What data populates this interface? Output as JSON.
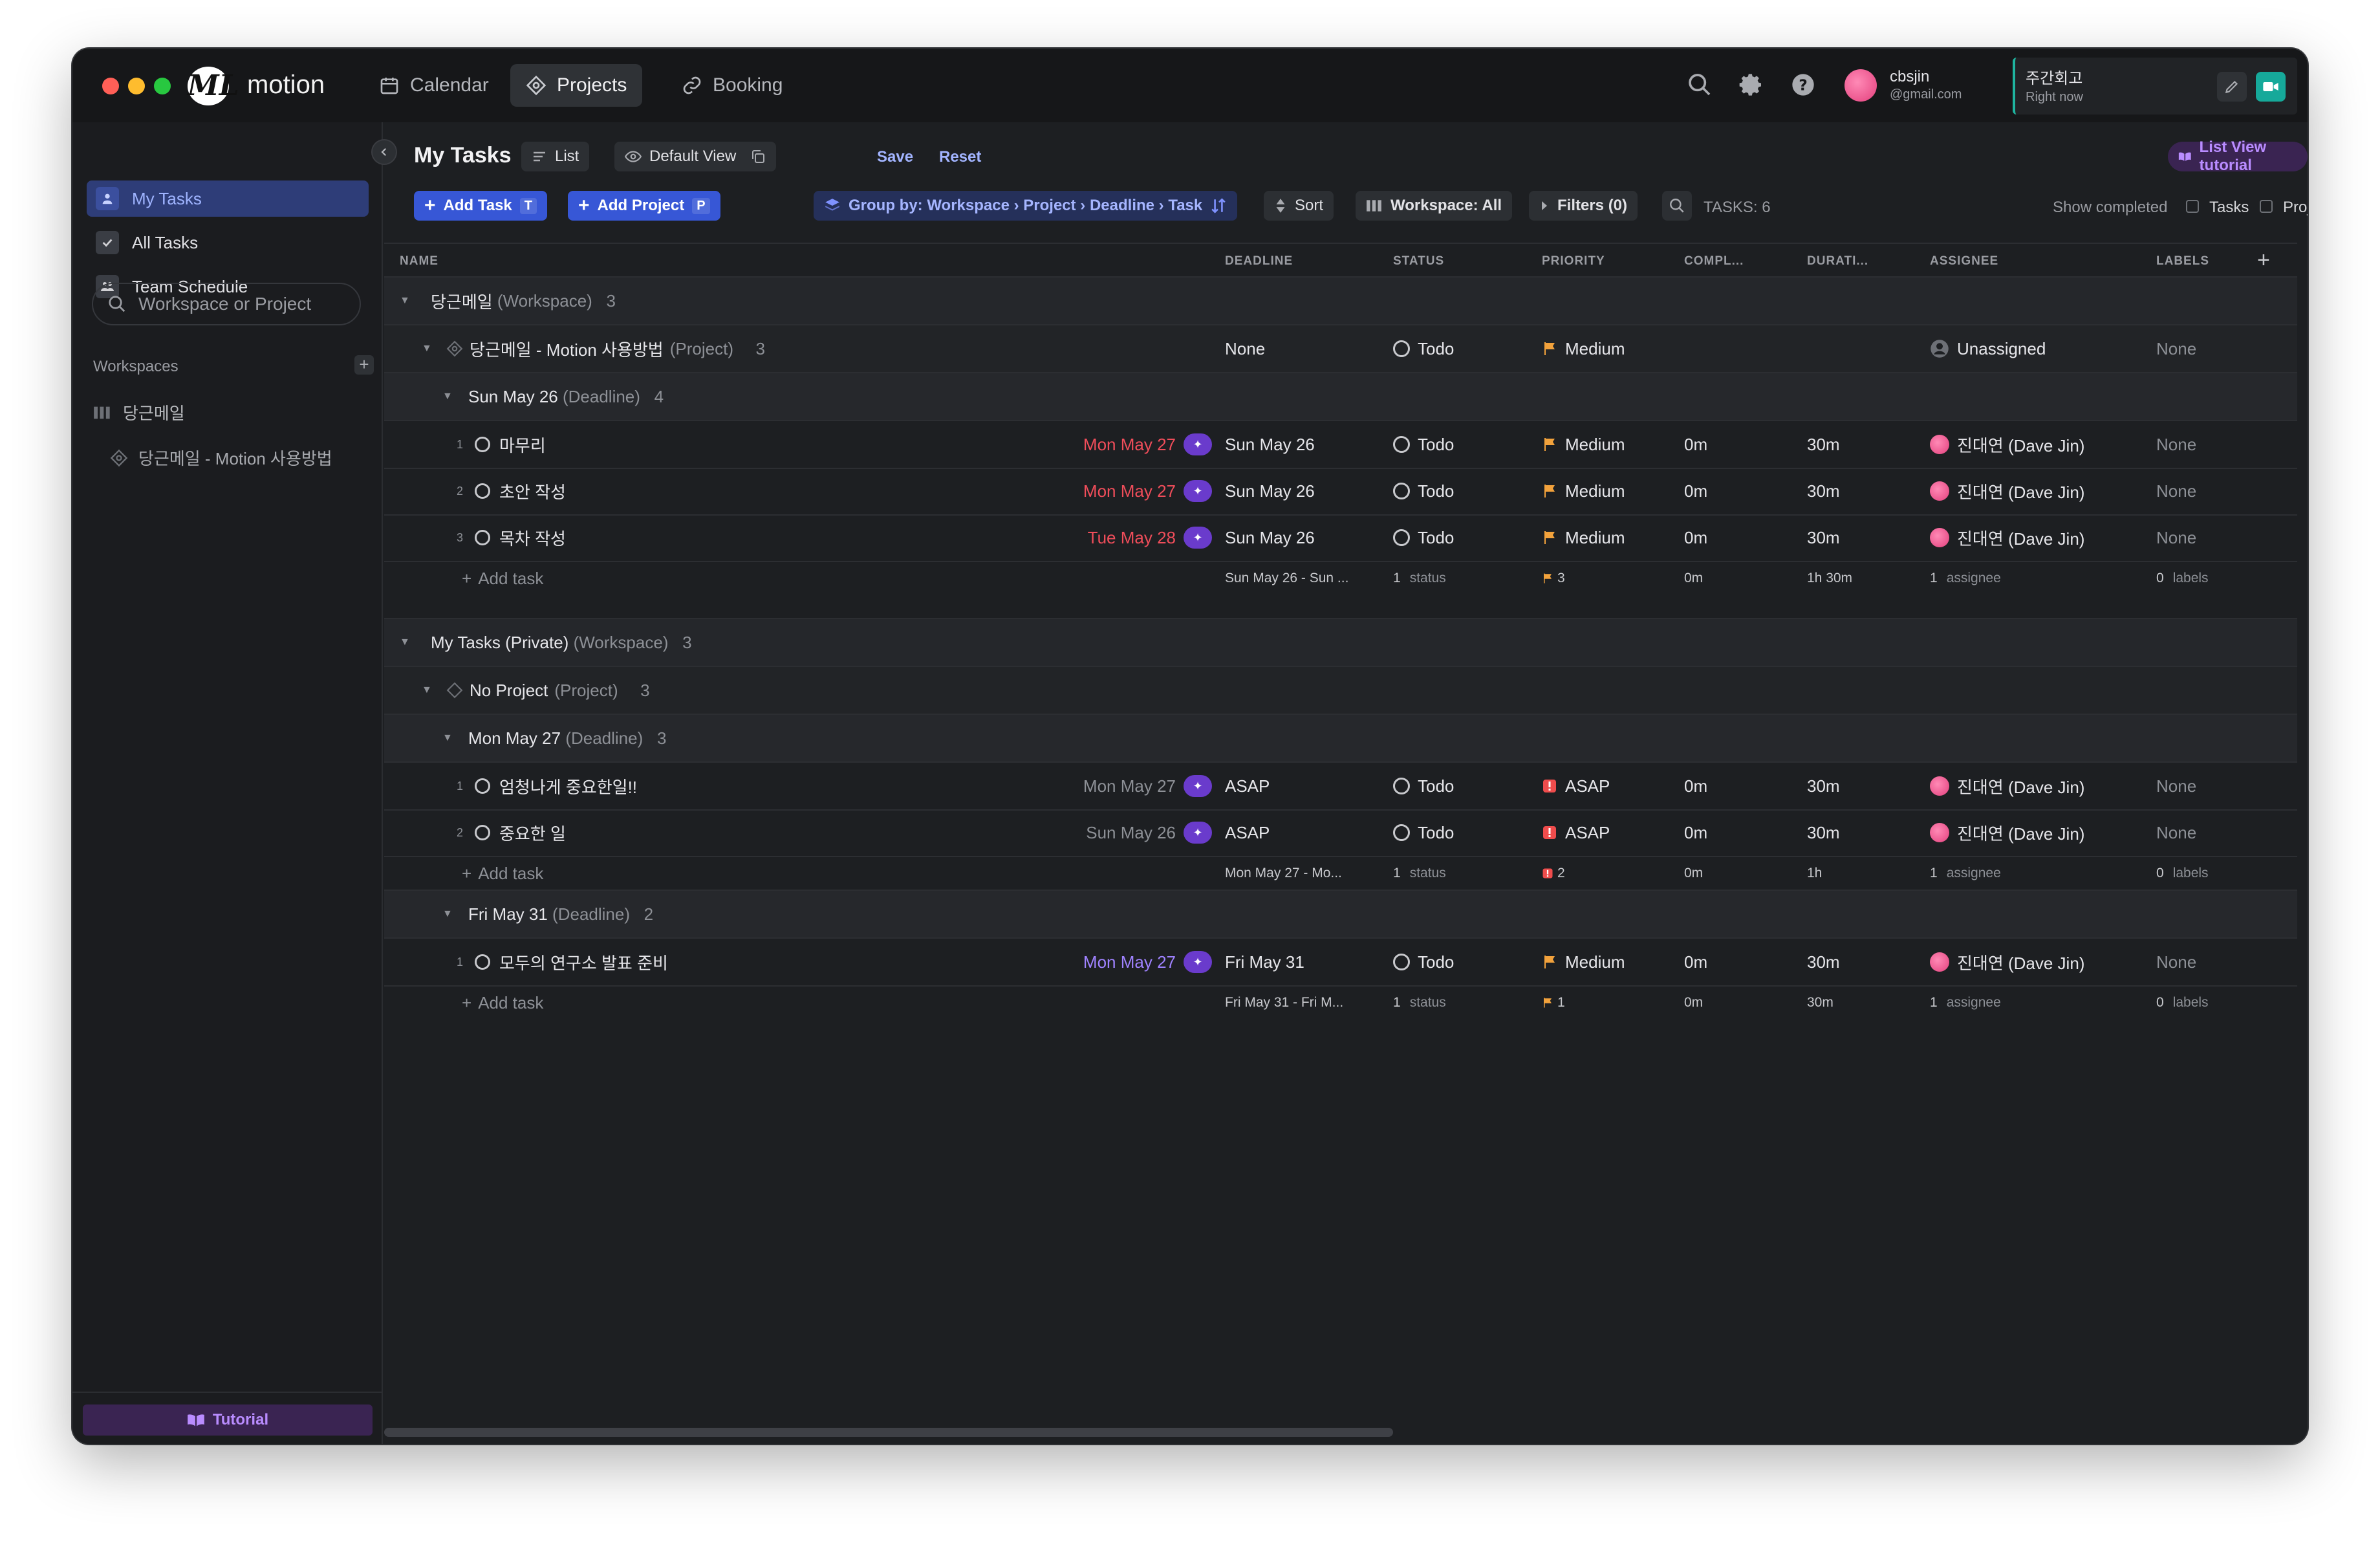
{
  "app": {
    "brand": "motion",
    "logo_glyph": "ML"
  },
  "nav": {
    "calendar": "Calendar",
    "projects": "Projects",
    "booking": "Booking"
  },
  "user": {
    "name": "cbsjin",
    "email": "@gmail.com"
  },
  "meeting": {
    "title": "주간회고",
    "time": "Right now"
  },
  "sidebar": {
    "items": [
      {
        "label": "My Tasks"
      },
      {
        "label": "All Tasks"
      },
      {
        "label": "Team Schedule"
      }
    ],
    "search_placeholder": "Workspace or Project",
    "workspaces_label": "Workspaces",
    "workspace_name": "당근메일",
    "project_name": "당근메일 - Motion 사용방법",
    "tutorial": "Tutorial"
  },
  "header": {
    "title": "My Tasks",
    "list": "List",
    "default_view": "Default View",
    "save": "Save",
    "reset": "Reset",
    "tutorial": "List View tutorial",
    "add_task": "Add Task",
    "add_task_key": "T",
    "add_project": "Add Project",
    "add_project_key": "P",
    "group_by": "Group by: Workspace › Project › Deadline › Task",
    "sort": "Sort",
    "workspace_filter": "Workspace: All",
    "filters": "Filters (0)",
    "task_count": "TASKS: 6",
    "show_completed": "Show completed",
    "tasks_opt": "Tasks",
    "projects_opt": "Projects"
  },
  "columns": {
    "name": "NAME",
    "deadline": "DEADLINE",
    "status": "STATUS",
    "priority": "PRIORITY",
    "completed": "COMPL...",
    "duration": "DURATI...",
    "assignee": "ASSIGNEE",
    "labels": "LABELS"
  },
  "groups": [
    {
      "workspace": "당근메일",
      "workspace_suffix": "(Workspace)",
      "workspace_count": "3",
      "project": "당근메일 - Motion 사용방법",
      "project_suffix": "(Project)",
      "project_count": "3",
      "project_deadline": "None",
      "project_status": "Todo",
      "project_priority": "Medium",
      "project_assignee": "Unassigned",
      "project_labels": "None",
      "deadlines": [
        {
          "label": "Sun May 26",
          "suffix": "(Deadline)",
          "count": "4",
          "tasks": [
            {
              "num": "1",
              "name": "마무리",
              "sched": "Mon May 27",
              "deadline": "Sun May 26",
              "status": "Todo",
              "priority": "Medium",
              "completed": "0m",
              "duration": "30m",
              "assignee": "진대연 (Dave Jin)",
              "labels": "None"
            },
            {
              "num": "2",
              "name": "초안 작성",
              "sched": "Mon May 27",
              "deadline": "Sun May 26",
              "status": "Todo",
              "priority": "Medium",
              "completed": "0m",
              "duration": "30m",
              "assignee": "진대연 (Dave Jin)",
              "labels": "None"
            },
            {
              "num": "3",
              "name": "목차 작성",
              "sched": "Tue May 28",
              "deadline": "Sun May 26",
              "status": "Todo",
              "priority": "Medium",
              "completed": "0m",
              "duration": "30m",
              "assignee": "진대연 (Dave Jin)",
              "labels": "None"
            }
          ],
          "summary": {
            "add": "Add task",
            "deadline": "Sun May 26 - Sun ...",
            "status_n": "1",
            "status_w": "status",
            "priority_n": "3",
            "completed": "0m",
            "duration": "1h 30m",
            "assignee_n": "1",
            "assignee_w": "assignee",
            "labels_n": "0",
            "labels_w": "labels"
          }
        }
      ]
    },
    {
      "workspace": "My Tasks (Private)",
      "workspace_suffix": "(Workspace)",
      "workspace_count": "3",
      "project": "No Project",
      "project_suffix": "(Project)",
      "project_count": "3",
      "deadlines": [
        {
          "label": "Mon May 27",
          "suffix": "(Deadline)",
          "count": "3",
          "tasks": [
            {
              "num": "1",
              "name": "엄청나게 중요한일!!",
              "sched": "Mon May 27",
              "deadline": "ASAP",
              "status": "Todo",
              "priority": "ASAP",
              "completed": "0m",
              "duration": "30m",
              "assignee": "진대연 (Dave Jin)",
              "labels": "None"
            },
            {
              "num": "2",
              "name": "중요한 일",
              "sched": "Sun May 26",
              "deadline": "ASAP",
              "status": "Todo",
              "priority": "ASAP",
              "completed": "0m",
              "duration": "30m",
              "assignee": "진대연 (Dave Jin)",
              "labels": "None"
            }
          ],
          "summary": {
            "add": "Add task",
            "deadline": "Mon May 27 - Mo...",
            "status_n": "1",
            "status_w": "status",
            "priority_n": "2",
            "completed": "0m",
            "duration": "1h",
            "assignee_n": "1",
            "assignee_w": "assignee",
            "labels_n": "0",
            "labels_w": "labels"
          }
        },
        {
          "label": "Fri May 31",
          "suffix": "(Deadline)",
          "count": "2",
          "tasks": [
            {
              "num": "1",
              "name": "모두의 연구소 발표 준비",
              "sched": "Mon May 27",
              "deadline": "Fri May 31",
              "status": "Todo",
              "priority": "Medium",
              "completed": "0m",
              "duration": "30m",
              "assignee": "진대연 (Dave Jin)",
              "labels": "None"
            }
          ],
          "summary": {
            "add": "Add task",
            "deadline": "Fri May 31 - Fri M...",
            "status_n": "1",
            "status_w": "status",
            "priority_n": "1",
            "completed": "0m",
            "duration": "30m",
            "assignee_n": "1",
            "assignee_w": "assignee",
            "labels_n": "0",
            "labels_w": "labels"
          }
        }
      ]
    }
  ],
  "colors": {
    "accent": "#3757d6",
    "bg": "#1d1f22",
    "overdue": "#ef4d5a",
    "scheduled_ok": "#9f82ff",
    "flag_medium": "#f2a23c",
    "flag_asap": "#ef4c4c"
  }
}
